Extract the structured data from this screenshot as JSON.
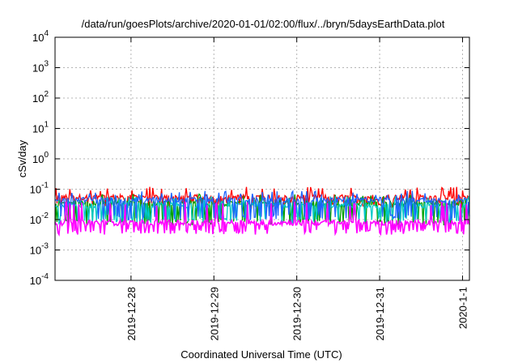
{
  "chart_data": {
    "type": "line",
    "title": "/data/run/goesPlots/archive/2020-01-01/02:00/flux/../bryn/5daysEarthData.plot",
    "xlabel": "Coordinated Universal Time (UTC)",
    "ylabel": "cSv/day",
    "x_range_days": [
      "2019-12-27T02:00",
      "2020-01-01T02:00"
    ],
    "xticks": [
      {
        "label": "2019-12-28",
        "value": "2019-12-28T00:00"
      },
      {
        "label": "2019-12-29",
        "value": "2019-12-29T00:00"
      },
      {
        "label": "2019-12-30",
        "value": "2019-12-30T00:00"
      },
      {
        "label": "2019-12-31",
        "value": "2019-12-31T00:00"
      },
      {
        "label": "2020-1-1",
        "value": "2020-01-01T00:00"
      }
    ],
    "y_scale": "log",
    "ylim": [
      0.0001,
      10000
    ],
    "yticks": [
      {
        "base": "10",
        "exp": "4",
        "value": 10000
      },
      {
        "base": "10",
        "exp": "3",
        "value": 1000
      },
      {
        "base": "10",
        "exp": "2",
        "value": 100
      },
      {
        "base": "10",
        "exp": "1",
        "value": 10
      },
      {
        "base": "10",
        "exp": "0",
        "value": 1
      },
      {
        "base": "10",
        "exp": "-1",
        "value": 0.1
      },
      {
        "base": "10",
        "exp": "-2",
        "value": 0.01
      },
      {
        "base": "10",
        "exp": "-3",
        "value": 0.001
      },
      {
        "base": "10",
        "exp": "-4",
        "value": 0.0001
      }
    ],
    "grid": true,
    "series": [
      {
        "color": "#ff0000",
        "base": 0.055,
        "spike_high": 0.12,
        "dip_low": 0.03
      },
      {
        "color": "#00a000",
        "base": 0.035,
        "spike_high": 0.07,
        "dip_low": 0.008
      },
      {
        "color": "#00c8c8",
        "base": 0.03,
        "spike_high": 0.06,
        "dip_low": 0.009
      },
      {
        "color": "#1e64ff",
        "base": 0.045,
        "spike_high": 0.09,
        "dip_low": 0.012
      },
      {
        "color": "#ff00ff",
        "base": 0.008,
        "spike_high": 0.04,
        "dip_low": 0.004
      }
    ]
  }
}
